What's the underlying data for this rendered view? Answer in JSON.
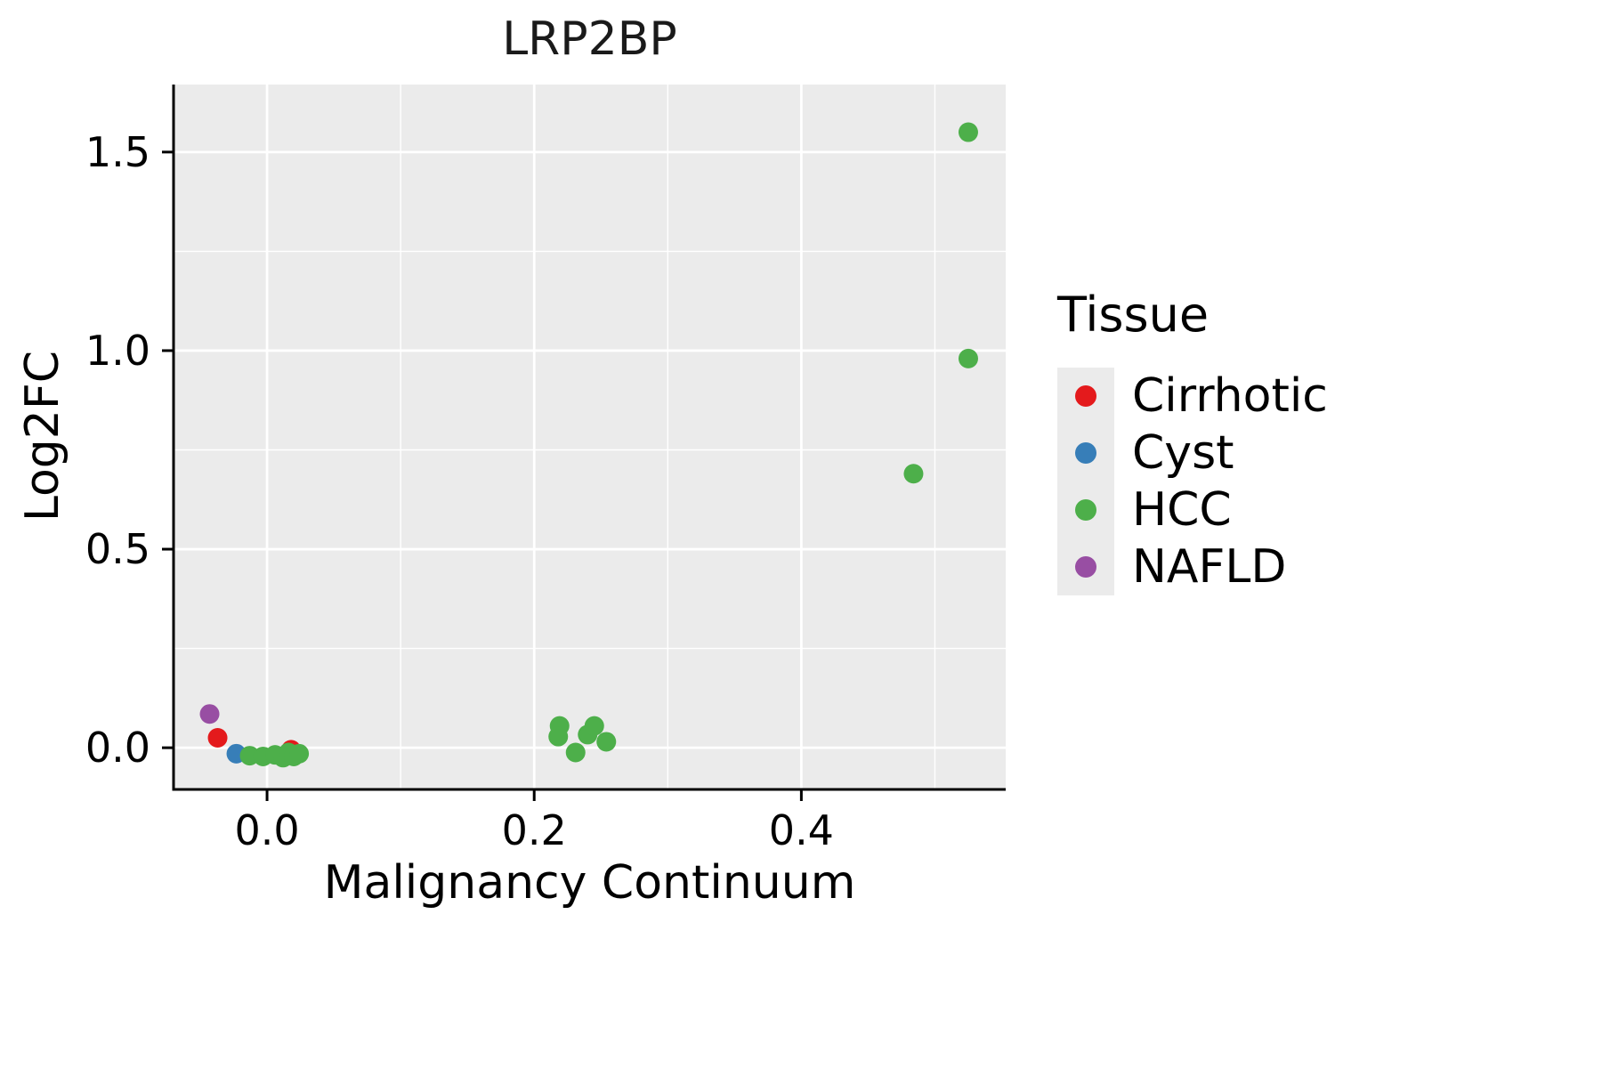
{
  "chart_data": {
    "type": "scatter",
    "title": "LRP2BP",
    "xlabel": "Malignancy Continuum",
    "ylabel": "Log2FC",
    "legend_title": "Tissue",
    "xlim": [
      -0.07,
      0.553
    ],
    "ylim": [
      -0.105,
      1.67
    ],
    "xticks": [
      0.0,
      0.2,
      0.4
    ],
    "xtick_labels": [
      "0.0",
      "0.2",
      "0.4"
    ],
    "xticks_minor": [
      0.1,
      0.3,
      0.5
    ],
    "yticks": [
      0.0,
      0.5,
      1.0,
      1.5
    ],
    "ytick_labels": [
      "0.0",
      "0.5",
      "1.0",
      "1.5"
    ],
    "yticks_minor": [
      0.25,
      0.75,
      1.25
    ],
    "grid": true,
    "legend_position": "right",
    "series": [
      {
        "name": "Cirrhotic",
        "color": "#E41A1C",
        "points": [
          [
            -0.037,
            0.025
          ],
          [
            0.018,
            -0.005
          ]
        ]
      },
      {
        "name": "Cyst",
        "color": "#377EB8",
        "points": [
          [
            -0.023,
            -0.015
          ]
        ]
      },
      {
        "name": "HCC",
        "color": "#4DAF4A",
        "points": [
          [
            -0.013,
            -0.02
          ],
          [
            -0.003,
            -0.022
          ],
          [
            0.006,
            -0.018
          ],
          [
            0.012,
            -0.025
          ],
          [
            0.016,
            -0.012
          ],
          [
            0.02,
            -0.022
          ],
          [
            0.024,
            -0.015
          ],
          [
            0.219,
            0.055
          ],
          [
            0.218,
            0.028
          ],
          [
            0.231,
            -0.012
          ],
          [
            0.24,
            0.033
          ],
          [
            0.245,
            0.055
          ],
          [
            0.254,
            0.015
          ],
          [
            0.484,
            0.69
          ],
          [
            0.525,
            0.98
          ],
          [
            0.525,
            1.55
          ]
        ]
      },
      {
        "name": "NAFLD",
        "color": "#984EA3",
        "points": [
          [
            -0.043,
            0.085
          ]
        ]
      }
    ]
  },
  "style": {
    "panel_bg": "#EBEBEB",
    "grid_color": "#FFFFFF",
    "axis_color": "#000000",
    "tick_label_color": "#000000",
    "point_radius": 11
  }
}
